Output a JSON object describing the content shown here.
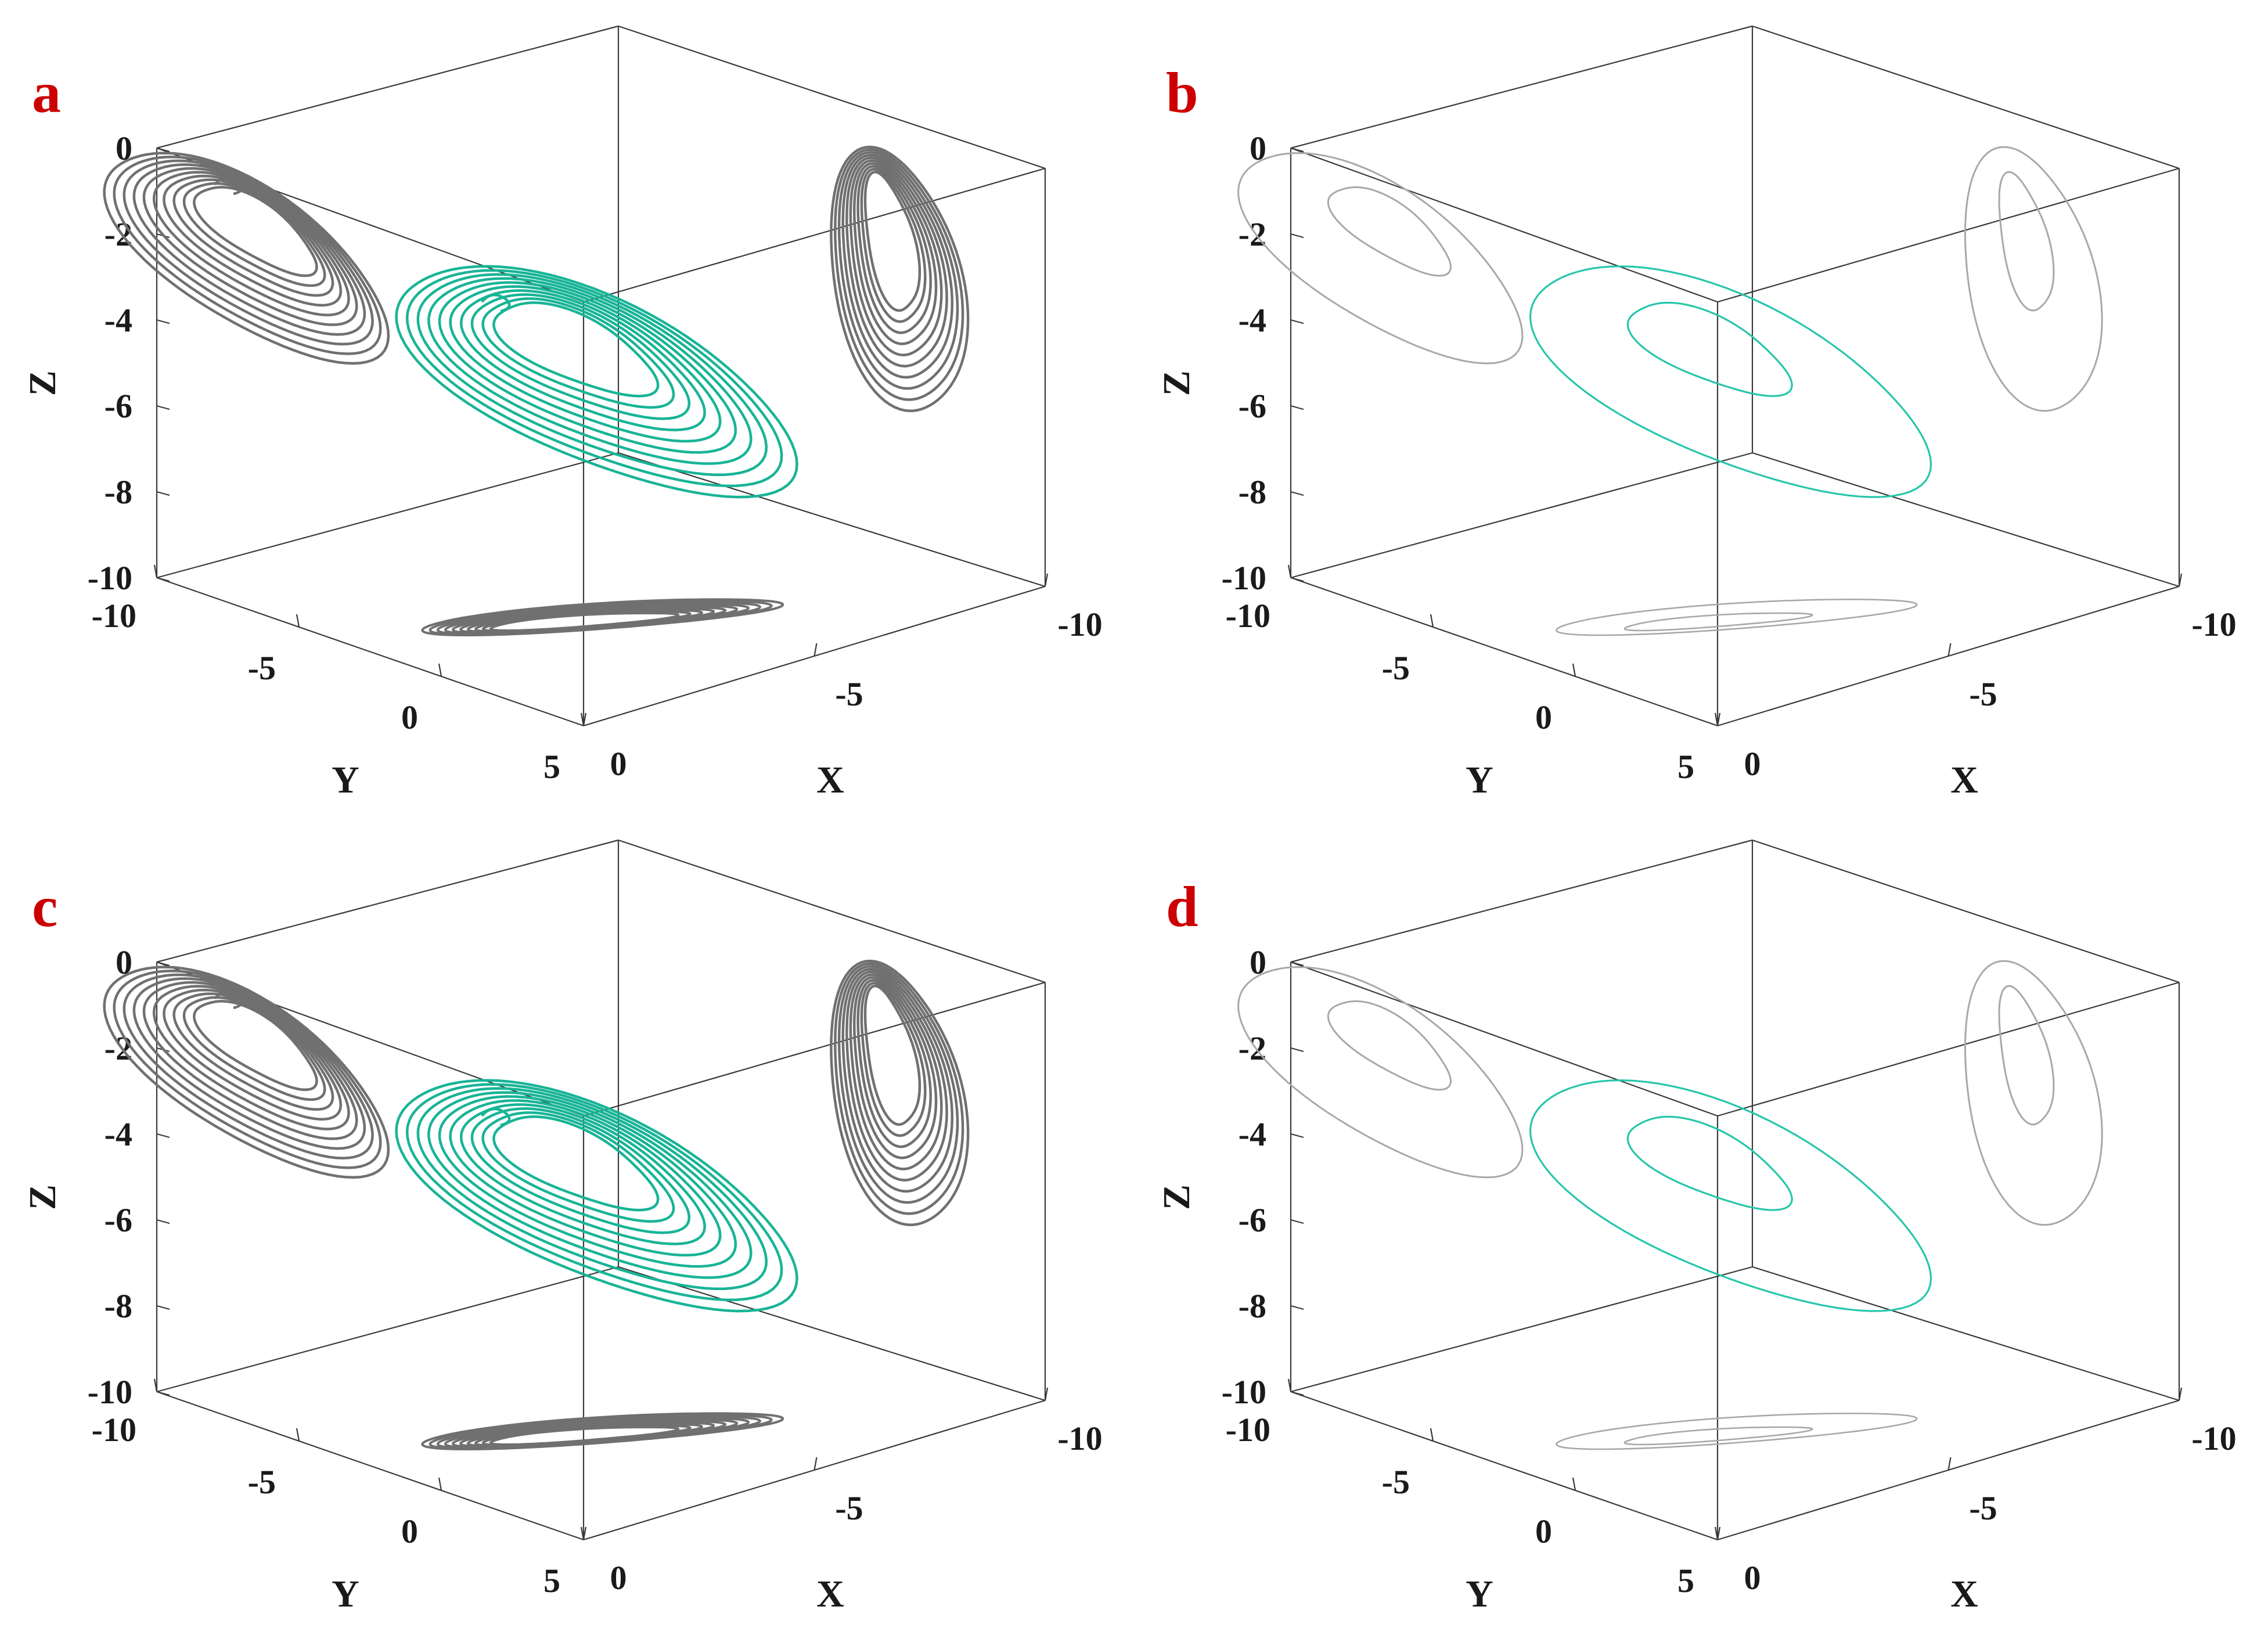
{
  "chart_data": [
    {
      "panel": "a",
      "type": "line",
      "projection": "3d",
      "xlabel": "X",
      "ylabel": "Y",
      "zlabel": "Z",
      "xlim": [
        -10,
        0
      ],
      "ylim": [
        -10,
        5
      ],
      "zlim": [
        -10,
        0
      ],
      "xticks": [
        "0",
        "-5",
        "-10"
      ],
      "yticks": [
        "-10",
        "-5",
        "0",
        "5"
      ],
      "zticks": [
        "0",
        "-2",
        "-4",
        "-6",
        "-8",
        "-10"
      ],
      "trajectory_color": "#18b496",
      "projection_color": "#707070",
      "grid": false,
      "loops": 10
    },
    {
      "panel": "b",
      "type": "line",
      "projection": "3d",
      "xlabel": "X",
      "ylabel": "Y",
      "zlabel": "Z",
      "xlim": [
        -10,
        0
      ],
      "ylim": [
        -10,
        5
      ],
      "zlim": [
        -10,
        0
      ],
      "xticks": [
        "0",
        "-5",
        "-10"
      ],
      "yticks": [
        "-10",
        "-5",
        "0",
        "5"
      ],
      "zticks": [
        "0",
        "-2",
        "-4",
        "-6",
        "-8",
        "-10"
      ],
      "trajectory_color": "#26c6aa",
      "projection_color": "#a8a8a8",
      "grid": false,
      "loops": 2
    },
    {
      "panel": "c",
      "type": "line",
      "projection": "3d",
      "xlabel": "X",
      "ylabel": "Y",
      "zlabel": "Z",
      "xlim": [
        -10,
        0
      ],
      "ylim": [
        -10,
        5
      ],
      "zlim": [
        -10,
        0
      ],
      "xticks": [
        "0",
        "-5",
        "-10"
      ],
      "yticks": [
        "-10",
        "-5",
        "0",
        "5"
      ],
      "zticks": [
        "0",
        "-2",
        "-4",
        "-6",
        "-8",
        "-10"
      ],
      "trajectory_color": "#18b496",
      "projection_color": "#707070",
      "grid": false,
      "loops": 10
    },
    {
      "panel": "d",
      "type": "line",
      "projection": "3d",
      "xlabel": "X",
      "ylabel": "Y",
      "zlabel": "Z",
      "xlim": [
        -10,
        0
      ],
      "ylim": [
        -10,
        5
      ],
      "zlim": [
        -10,
        0
      ],
      "xticks": [
        "0",
        "-5",
        "-10"
      ],
      "yticks": [
        "-10",
        "-5",
        "0",
        "5"
      ],
      "zticks": [
        "0",
        "-2",
        "-4",
        "-6",
        "-8",
        "-10"
      ],
      "trajectory_color": "#26c6aa",
      "projection_color": "#a8a8a8",
      "grid": false,
      "loops": 2
    }
  ],
  "colors": {
    "panel_letter": "#cc0000",
    "box": "#3a3a3a"
  }
}
